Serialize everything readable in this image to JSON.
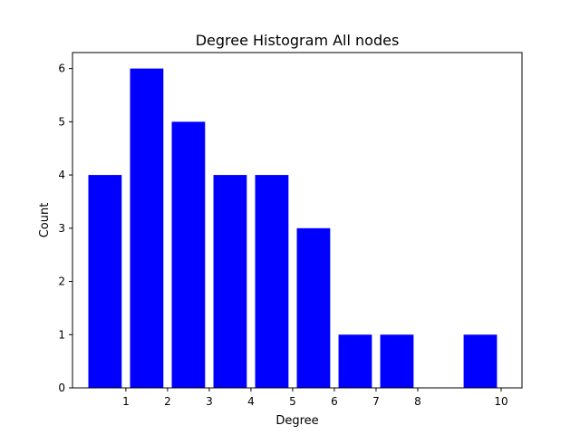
{
  "chart_data": {
    "type": "bar",
    "title": "Degree Histogram All nodes",
    "xlabel": "Degree",
    "ylabel": "Count",
    "x": [
      1,
      2,
      3,
      4,
      5,
      6,
      7,
      8,
      10
    ],
    "values": [
      4,
      6,
      5,
      4,
      4,
      3,
      1,
      1,
      1
    ],
    "bar_color": "#0000ff",
    "xticks": [
      1,
      2,
      3,
      4,
      5,
      6,
      7,
      8,
      10
    ],
    "yticks": [
      0,
      1,
      2,
      3,
      4,
      5,
      6
    ],
    "xlim": [
      -0.28,
      10.5
    ],
    "ylim": [
      0,
      6.3
    ],
    "bar_width": 0.8,
    "grid": false,
    "legend": "none"
  }
}
